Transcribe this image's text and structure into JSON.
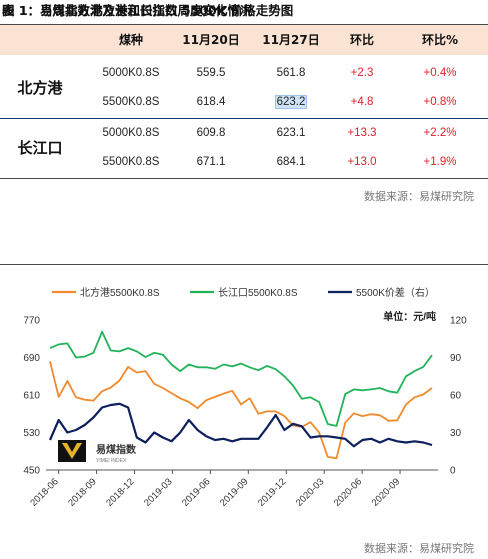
{
  "table": {
    "title": "表 1：当周北方港及长江口指数周度变化情况",
    "headers": [
      "煤种",
      "11月20日",
      "11月27日",
      "环比",
      "环比%"
    ],
    "groups": [
      {
        "region": "北方港",
        "rows": [
          {
            "coal": "5000K0.8S",
            "nov20": "559.5",
            "nov27": "561.8",
            "change": "+2.3",
            "pct": "+0.4%"
          },
          {
            "coal": "5500K0.8S",
            "nov20": "618.4",
            "nov27": "623.2",
            "change": "+4.8",
            "pct": "+0.8%"
          }
        ]
      },
      {
        "region": "长江口",
        "rows": [
          {
            "coal": "5000K0.8S",
            "nov20": "609.8",
            "nov27": "623.1",
            "change": "+13.3",
            "pct": "+2.2%"
          },
          {
            "coal": "5500K0.8S",
            "nov20": "671.1",
            "nov27": "684.1",
            "change": "+13.0",
            "pct": "+1.9%"
          }
        ]
      }
    ],
    "source": "数据来源：易煤研究院",
    "highlighted_cell": "623.2"
  },
  "figure": {
    "title": "图 1：易煤指数北方港和长江口 5500K 价格走势图",
    "source": "数据来源：易煤研究院",
    "watermark": {
      "name": "易煤指数",
      "sub": "YIMEI INDEX"
    }
  },
  "chart_data": {
    "type": "line",
    "unit_label": "单位：元/吨",
    "x_ticks": [
      "2018-06",
      "2018-09",
      "2018-12",
      "2019-03",
      "2019-06",
      "2019-09",
      "2019-12",
      "2020-03",
      "2020-06",
      "2020-09"
    ],
    "x_range": [
      "2018-05",
      "2020-12"
    ],
    "y_left": {
      "min": 450,
      "max": 770,
      "ticks": [
        450,
        530,
        610,
        690,
        770
      ]
    },
    "y_right": {
      "min": 0,
      "max": 120,
      "ticks": [
        0,
        30,
        60,
        90,
        120
      ]
    },
    "legend_position": "top",
    "grid": false,
    "series": [
      {
        "name": "北方港5500K0.8S",
        "axis": "left",
        "color": "#f08a2c",
        "values": [
          682,
          606,
          640,
          605,
          600,
          598,
          618,
          626,
          641,
          670,
          658,
          661,
          634,
          625,
          614,
          603,
          595,
          582,
          599,
          606,
          613,
          619,
          590,
          603,
          570,
          575,
          575,
          565,
          545,
          542,
          552,
          530,
          478,
          475,
          551,
          571,
          565,
          569,
          567,
          555,
          556,
          590,
          605,
          611,
          625
        ]
      },
      {
        "name": "长江口5500K0.8S",
        "axis": "left",
        "color": "#21b35a",
        "values": [
          710,
          718,
          720,
          690,
          692,
          700,
          745,
          705,
          703,
          710,
          703,
          691,
          700,
          696,
          675,
          661,
          675,
          669,
          669,
          666,
          675,
          671,
          677,
          669,
          663,
          672,
          665,
          650,
          630,
          602,
          605,
          595,
          548,
          544,
          612,
          622,
          620,
          622,
          625,
          618,
          615,
          650,
          661,
          670,
          695
        ]
      },
      {
        "name": "5500K价差（右）",
        "axis": "right",
        "color": "#0d1f5c",
        "values": [
          24,
          40,
          30,
          32,
          36,
          42,
          50,
          52,
          53,
          50,
          26,
          22,
          30,
          26,
          23,
          30,
          40,
          32,
          27,
          24,
          25,
          23,
          25,
          25,
          25,
          34,
          44,
          32,
          37,
          35,
          26,
          27,
          27,
          26,
          25,
          19,
          24,
          25,
          22,
          25,
          23,
          22,
          23,
          22,
          20
        ]
      }
    ]
  }
}
